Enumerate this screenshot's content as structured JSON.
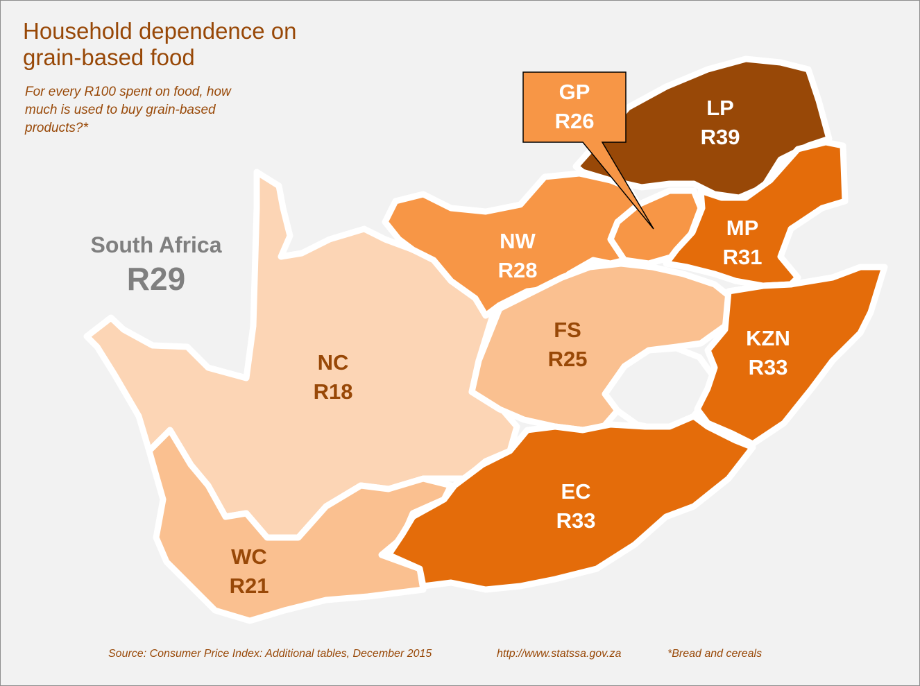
{
  "title": "Household dependence on grain-based food",
  "subtitle": "For every R100 spent on food, how much is used to buy grain-based products?*",
  "national": {
    "name": "South Africa",
    "value": "R29"
  },
  "colors": {
    "r18": "#fcd5b5",
    "r21_r25": "#fac090",
    "r26_r28": "#f79646",
    "r31_r33": "#e46c0a",
    "r39": "#984807",
    "label_dark": "#984807",
    "label_light": "#ffffff",
    "national_text": "#7f7f7f"
  },
  "provinces": [
    {
      "code": "LP",
      "value": "R39",
      "amount": 39
    },
    {
      "code": "GP",
      "value": "R26",
      "amount": 26
    },
    {
      "code": "NW",
      "value": "R28",
      "amount": 28
    },
    {
      "code": "MP",
      "value": "R31",
      "amount": 31
    },
    {
      "code": "KZN",
      "value": "R33",
      "amount": 33
    },
    {
      "code": "FS",
      "value": "R25",
      "amount": 25
    },
    {
      "code": "NC",
      "value": "R18",
      "amount": 18
    },
    {
      "code": "EC",
      "value": "R33",
      "amount": 33
    },
    {
      "code": "WC",
      "value": "R21",
      "amount": 21
    }
  ],
  "footer": {
    "source": "Source: Consumer Price Index: Additional tables, December 2015",
    "url": "http://www.statssa.gov.za",
    "note": "*Bread and cereals"
  }
}
